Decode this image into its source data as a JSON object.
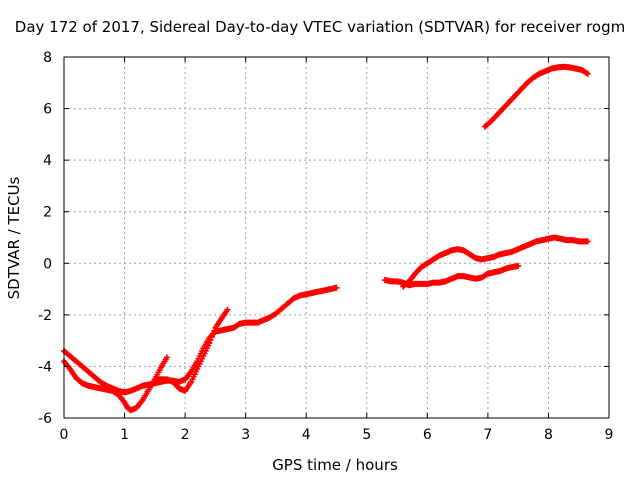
{
  "chart_data": {
    "type": "scatter",
    "title": "Day 172 of 2017, Sidereal Day-to-day VTEC variation (SDTVAR) for receiver rogm",
    "xlabel": "GPS time / hours",
    "ylabel": "SDTVAR / TECUs",
    "xlim": [
      0,
      9
    ],
    "ylim": [
      -6,
      8
    ],
    "xticks": [
      0,
      1,
      2,
      3,
      4,
      5,
      6,
      7,
      8,
      9
    ],
    "yticks": [
      -6,
      -4,
      -2,
      0,
      2,
      4,
      6,
      8
    ],
    "grid": true,
    "marker": "+",
    "color": "#ff0000",
    "series": [
      {
        "x": [
          0.0,
          0.1,
          0.2,
          0.3,
          0.4,
          0.5,
          0.6,
          0.7,
          0.8,
          0.9,
          1.0,
          1.1,
          1.2,
          1.3,
          1.4,
          1.5,
          1.6,
          1.7,
          1.8,
          1.9,
          2.0,
          2.1,
          2.2,
          2.3,
          2.4,
          2.5,
          2.6,
          2.7,
          2.8,
          2.9,
          3.0,
          3.1,
          3.2,
          3.3,
          3.4,
          3.5,
          3.6,
          3.7,
          3.8,
          3.9,
          4.0,
          4.1,
          4.2,
          4.3,
          4.4,
          4.5
        ],
        "y": [
          -3.4,
          -3.6,
          -3.8,
          -4.0,
          -4.2,
          -4.4,
          -4.6,
          -4.75,
          -4.85,
          -4.95,
          -5.0,
          -4.95,
          -4.85,
          -4.75,
          -4.7,
          -4.65,
          -4.6,
          -4.55,
          -4.55,
          -4.6,
          -4.5,
          -4.2,
          -3.8,
          -3.3,
          -2.9,
          -2.65,
          -2.6,
          -2.55,
          -2.5,
          -2.35,
          -2.3,
          -2.3,
          -2.3,
          -2.2,
          -2.1,
          -1.95,
          -1.75,
          -1.55,
          -1.35,
          -1.25,
          -1.2,
          -1.15,
          -1.1,
          -1.05,
          -1.0,
          -0.95
        ]
      },
      {
        "x": [
          0.0,
          0.1,
          0.2,
          0.3,
          0.4,
          0.5,
          0.6,
          0.7,
          0.8,
          0.9,
          1.0,
          1.05,
          1.1,
          1.2,
          1.3,
          1.4,
          1.5,
          1.6,
          1.7
        ],
        "y": [
          -3.8,
          -4.1,
          -4.45,
          -4.65,
          -4.75,
          -4.8,
          -4.85,
          -4.9,
          -4.95,
          -5.1,
          -5.4,
          -5.6,
          -5.7,
          -5.6,
          -5.3,
          -4.9,
          -4.5,
          -4.05,
          -3.65
        ]
      },
      {
        "x": [
          1.5,
          1.6,
          1.7,
          1.8,
          1.9,
          2.0,
          2.1,
          2.2,
          2.3,
          2.4,
          2.5,
          2.6,
          2.7
        ],
        "y": [
          -4.5,
          -4.5,
          -4.5,
          -4.6,
          -4.85,
          -4.95,
          -4.6,
          -4.1,
          -3.6,
          -3.1,
          -2.5,
          -2.15,
          -1.8
        ]
      },
      {
        "x": [
          5.3,
          5.4,
          5.5,
          5.6,
          5.7,
          5.8,
          5.9,
          6.0,
          6.1,
          6.2,
          6.3,
          6.4,
          6.5,
          6.6,
          6.7,
          6.8,
          6.9,
          7.0,
          7.1,
          7.2,
          7.3,
          7.4,
          7.5
        ],
        "y": [
          -0.65,
          -0.7,
          -0.7,
          -0.75,
          -0.85,
          -0.8,
          -0.8,
          -0.8,
          -0.75,
          -0.75,
          -0.7,
          -0.6,
          -0.5,
          -0.5,
          -0.55,
          -0.6,
          -0.55,
          -0.4,
          -0.35,
          -0.3,
          -0.2,
          -0.15,
          -0.1
        ]
      },
      {
        "x": [
          5.6,
          5.7,
          5.8,
          5.9,
          6.0,
          6.1,
          6.2,
          6.3,
          6.4,
          6.5,
          6.6,
          6.7,
          6.8,
          6.9,
          7.0,
          7.1,
          7.2,
          7.3,
          7.4,
          7.5,
          7.6,
          7.7,
          7.8,
          7.9,
          8.0,
          8.1,
          8.2,
          8.3,
          8.4,
          8.5,
          8.6,
          8.65
        ],
        "y": [
          -0.9,
          -0.7,
          -0.4,
          -0.15,
          0.0,
          0.15,
          0.3,
          0.4,
          0.5,
          0.55,
          0.5,
          0.35,
          0.2,
          0.15,
          0.2,
          0.25,
          0.35,
          0.4,
          0.45,
          0.55,
          0.65,
          0.75,
          0.85,
          0.9,
          0.95,
          1.0,
          0.95,
          0.9,
          0.9,
          0.85,
          0.85,
          0.85
        ]
      },
      {
        "x": [
          6.95,
          7.05,
          7.15,
          7.25,
          7.35,
          7.45,
          7.55,
          7.65,
          7.75,
          7.85,
          7.95,
          8.05,
          8.15,
          8.25,
          8.35,
          8.45,
          8.55,
          8.65
        ],
        "y": [
          5.3,
          5.5,
          5.75,
          6.0,
          6.25,
          6.5,
          6.75,
          7.0,
          7.2,
          7.35,
          7.45,
          7.55,
          7.6,
          7.62,
          7.6,
          7.55,
          7.5,
          7.35
        ]
      }
    ]
  }
}
